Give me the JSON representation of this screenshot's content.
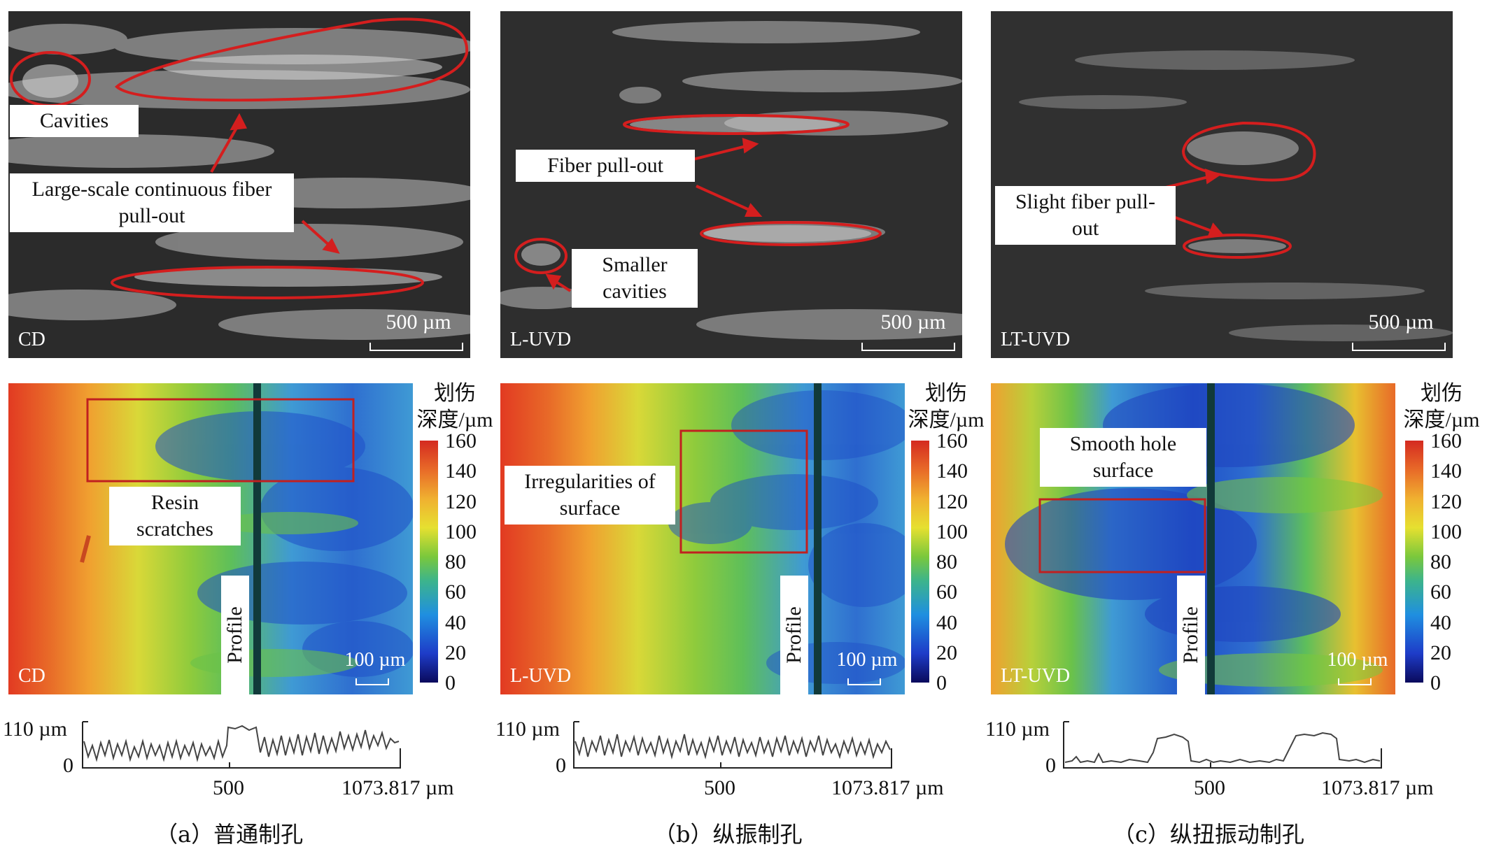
{
  "panels": [
    {
      "sem": {
        "label": "CD",
        "scale": "500 µm",
        "callouts": [
          "Cavities",
          "Large-scale continuous fiber pull-out"
        ]
      },
      "map": {
        "label": "CD",
        "scale": "100 µm",
        "callout": "Resin scratches",
        "profile_tag": "Profile"
      },
      "profile": {
        "ymax": "110 µm",
        "ymin": "0",
        "xmid": "500",
        "xmax": "1073.817 µm"
      },
      "caption": "（a）普通制孔"
    },
    {
      "sem": {
        "label": "L-UVD",
        "scale": "500 µm",
        "callouts": [
          "Fiber pull-out",
          "Smaller cavities"
        ]
      },
      "map": {
        "label": "L-UVD",
        "scale": "100 µm",
        "callout": "Irregularities of surface",
        "profile_tag": "Profile"
      },
      "profile": {
        "ymax": "110 µm",
        "ymin": "0",
        "xmid": "500",
        "xmax": "1073.817 µm"
      },
      "caption": "（b）纵振制孔"
    },
    {
      "sem": {
        "label": "LT-UVD",
        "scale": "500 µm",
        "callouts": [
          "Slight fiber pull-out"
        ]
      },
      "map": {
        "label": "LT-UVD",
        "scale": "100 µm",
        "callout": "Smooth hole surface",
        "profile_tag": "Profile"
      },
      "profile": {
        "ymax": "110 µm",
        "ymin": "0",
        "xmid": "500",
        "xmax": "1073.817 µm"
      },
      "caption": "（c）纵扭振动制孔"
    }
  ],
  "colorbar": {
    "title_line1": "划伤",
    "title_line2": "深度/µm",
    "ticks": [
      "160",
      "140",
      "120",
      "100",
      "80",
      "60",
      "40",
      "20",
      "0"
    ]
  },
  "colors": {
    "annotation_red": "#d41e1e"
  }
}
